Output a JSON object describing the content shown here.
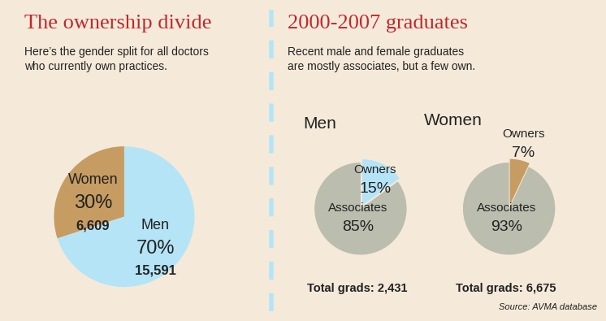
{
  "panels": [
    {
      "title": "The ownership divide",
      "subtitle": "Here’s the gender split for all doctors\nwho currently own practices."
    },
    {
      "title": "2000-2007 graduates",
      "subtitle": "Recent male and female graduates\nare mostly associates, but a few own."
    }
  ],
  "source": "Source: AVMA database",
  "chart_data": [
    {
      "type": "pie",
      "categories": [
        "Women",
        "Men"
      ],
      "values": [
        30,
        70
      ],
      "value_labels": [
        "30%",
        "70%"
      ],
      "counts": [
        6609,
        15591
      ],
      "count_labels": [
        "6,609",
        "15,591"
      ],
      "colors": [
        "#c69c62",
        "#b5e4f6"
      ],
      "data_labels": true
    },
    {
      "type": "pie",
      "title": "Men",
      "categories": [
        "Owners",
        "Associates"
      ],
      "values": [
        15,
        85
      ],
      "value_labels": [
        "15%",
        "85%"
      ],
      "colors": [
        "#b5e4f6",
        "#bbbdae"
      ],
      "data_labels": true,
      "annotations": [
        "Total grads: 2,431"
      ]
    },
    {
      "type": "pie",
      "title": "Women",
      "categories": [
        "Owners",
        "Associates"
      ],
      "values": [
        7,
        93
      ],
      "value_labels": [
        "7%",
        "93%"
      ],
      "colors": [
        "#c69c62",
        "#bbbdae"
      ],
      "data_labels": true,
      "annotations": [
        "Total grads: 6,675"
      ]
    }
  ]
}
